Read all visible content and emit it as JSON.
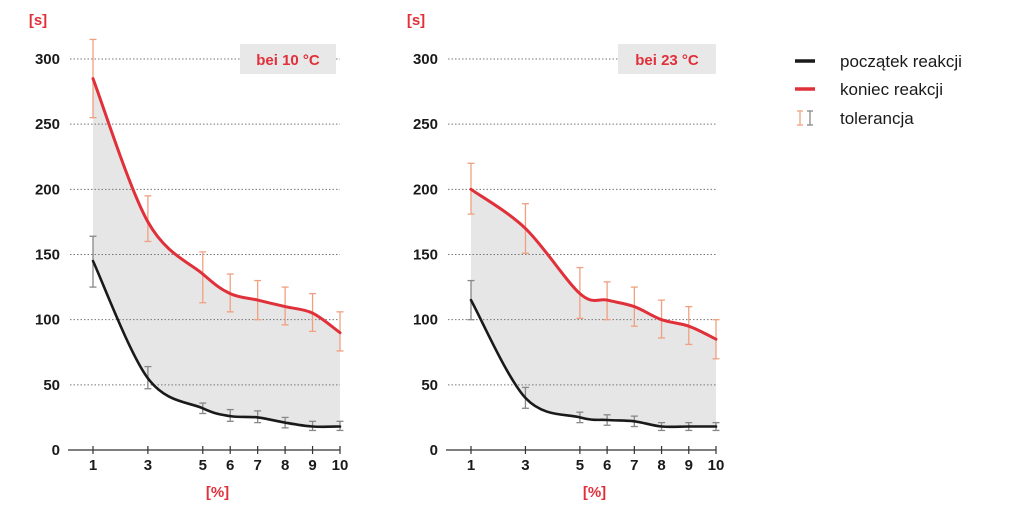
{
  "chart_data": [
    {
      "type": "line",
      "title": "",
      "badge": "bei 10 °C",
      "ylabel": "[s]",
      "xlabel": "[%]",
      "ylim": [
        0,
        300
      ],
      "y_ticks": [
        0,
        50,
        100,
        150,
        200,
        250,
        300
      ],
      "x_ticks": [
        1,
        3,
        5,
        6,
        7,
        8,
        9,
        10
      ],
      "grid": true,
      "series": [
        {
          "name": "początek reakcji",
          "color": "#1a1a1a",
          "x": [
            1,
            3,
            5,
            6,
            7,
            8,
            9,
            10
          ],
          "values": [
            145,
            55,
            32,
            26,
            25,
            21,
            18,
            18
          ],
          "err_low": [
            125,
            47,
            28,
            22,
            21,
            17,
            15,
            15
          ],
          "err_high": [
            164,
            64,
            36,
            31,
            30,
            25,
            22,
            22
          ]
        },
        {
          "name": "koniec reakcji",
          "color": "#e0303a",
          "x": [
            1,
            3,
            5,
            6,
            7,
            8,
            9,
            10
          ],
          "values": [
            285,
            175,
            135,
            120,
            115,
            110,
            105,
            90
          ],
          "err_low": [
            255,
            160,
            113,
            106,
            100,
            96,
            91,
            76
          ],
          "err_high": [
            315,
            195,
            152,
            135,
            130,
            125,
            120,
            106
          ]
        }
      ]
    },
    {
      "type": "line",
      "title": "",
      "badge": "bei 23 °C",
      "ylabel": "[s]",
      "xlabel": "[%]",
      "ylim": [
        0,
        300
      ],
      "y_ticks": [
        0,
        50,
        100,
        150,
        200,
        250,
        300
      ],
      "x_ticks": [
        1,
        3,
        5,
        6,
        7,
        8,
        9,
        10
      ],
      "grid": true,
      "series": [
        {
          "name": "początek reakcji",
          "color": "#1a1a1a",
          "x": [
            1,
            3,
            5,
            6,
            7,
            8,
            9,
            10
          ],
          "values": [
            115,
            40,
            25,
            23,
            22,
            18,
            18,
            18
          ],
          "err_low": [
            100,
            32,
            21,
            19,
            18,
            15,
            15,
            15
          ],
          "err_high": [
            130,
            48,
            29,
            27,
            26,
            21,
            21,
            21
          ]
        },
        {
          "name": "koniec reakcji",
          "color": "#e0303a",
          "x": [
            1,
            3,
            5,
            6,
            7,
            8,
            9,
            10
          ],
          "values": [
            200,
            170,
            120,
            115,
            110,
            100,
            95,
            85
          ],
          "err_low": [
            181,
            151,
            101,
            100,
            95,
            86,
            81,
            70
          ],
          "err_high": [
            220,
            189,
            140,
            129,
            125,
            115,
            110,
            100
          ]
        }
      ]
    }
  ],
  "legend": {
    "position": "right",
    "items": [
      {
        "label": "początek reakcji",
        "kind": "line",
        "color": "#1a1a1a"
      },
      {
        "label": "koniec reakcji",
        "kind": "line",
        "color": "#e0303a"
      },
      {
        "label": "tolerancja",
        "kind": "errorbar",
        "colors": [
          "#f0a080",
          "#888888"
        ]
      }
    ]
  },
  "colors": {
    "band": "#e6e6e6",
    "badge_bg": "#e8e8e8",
    "grid": "#777777",
    "axis": "#333333",
    "err_red": "#f0a080",
    "err_black": "#888888"
  }
}
